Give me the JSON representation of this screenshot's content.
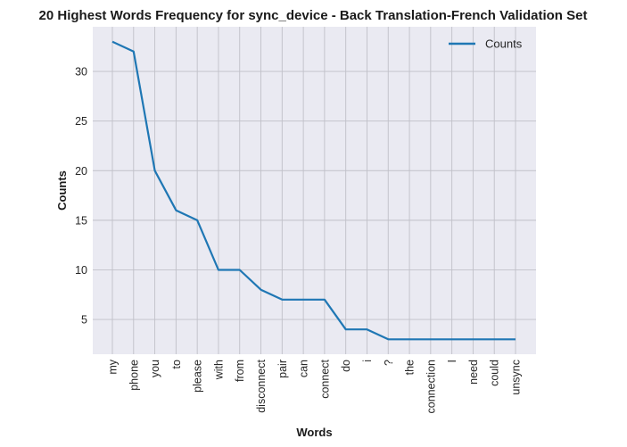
{
  "chart_data": {
    "type": "line",
    "title": "20 Highest Words Frequency for sync_device - Back Translation-French Validation Set",
    "xlabel": "Words",
    "ylabel": "Counts",
    "categories": [
      "my",
      "phone",
      "you",
      "to",
      "please",
      "with",
      "from",
      "disconnect",
      "pair",
      "can",
      "connect",
      "do",
      "i",
      "?",
      "the",
      "connection",
      "I",
      "need",
      "could",
      "unsync"
    ],
    "series": [
      {
        "name": "Counts",
        "values": [
          33,
          32,
          20,
          16,
          15,
          10,
          10,
          8,
          7,
          7,
          7,
          4,
          4,
          3,
          3,
          3,
          3,
          3,
          3,
          3
        ]
      }
    ],
    "ylim": [
      1.5,
      34.5
    ],
    "yticks": [
      5,
      10,
      15,
      20,
      25,
      30
    ],
    "grid": true,
    "legend_position": "top-right",
    "colors": {
      "line": "#1f77b4",
      "plot_bg": "#eaeaf2",
      "grid": "#c0c0c8"
    }
  }
}
